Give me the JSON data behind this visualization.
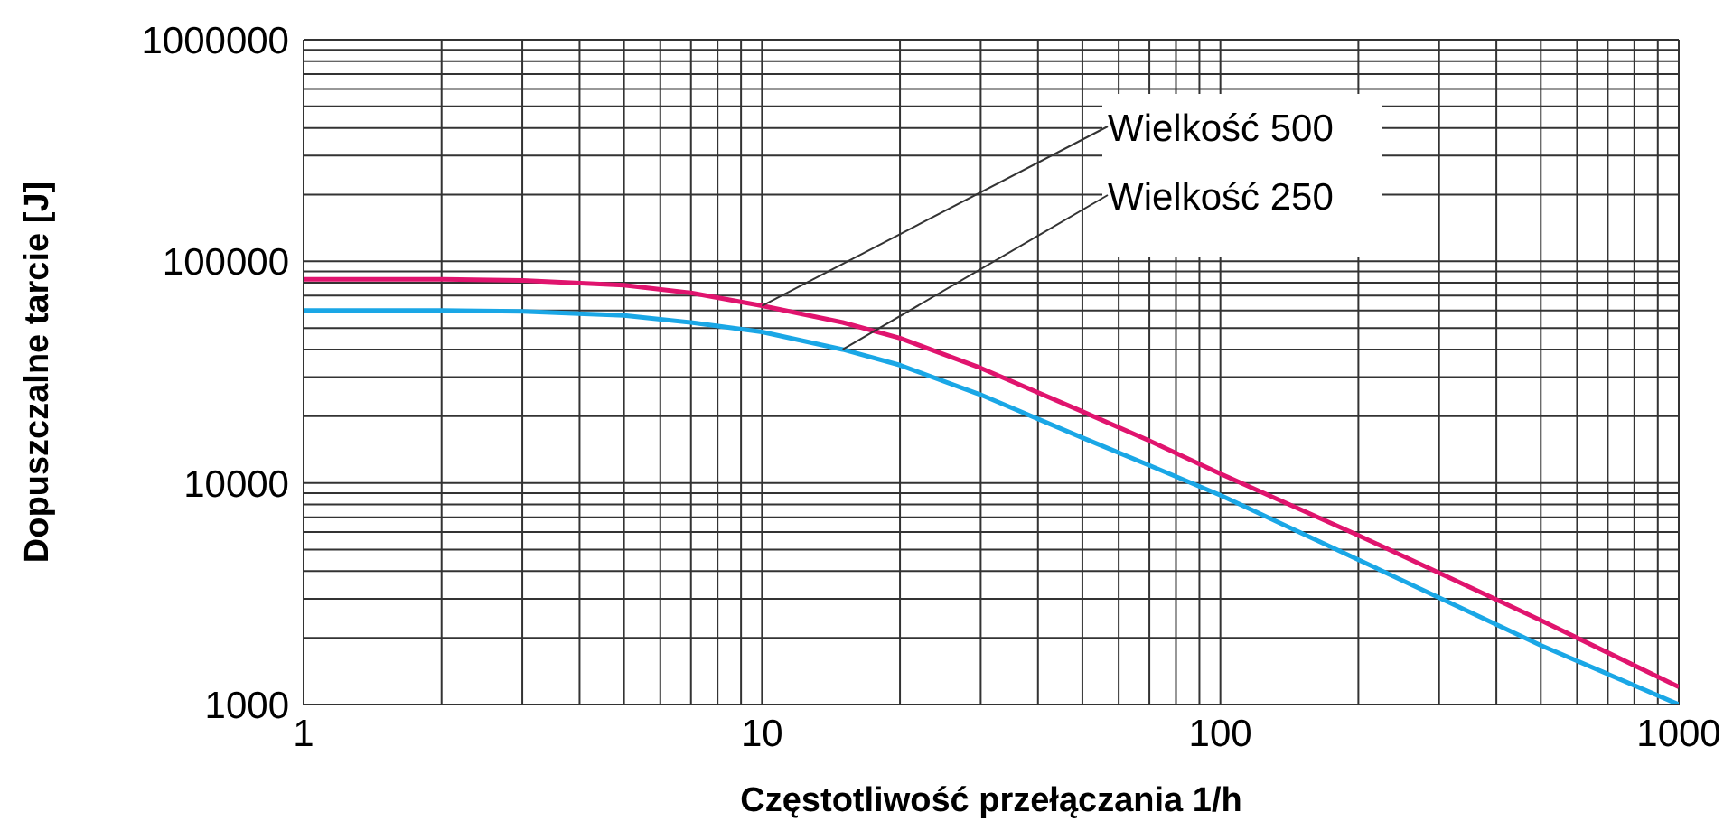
{
  "chart_data": {
    "type": "line",
    "xlabel": "Częstotliwość przełączania 1/h",
    "ylabel": "Dopuszczalne tarcie  [J]",
    "log": "xy",
    "grid": true,
    "legend": false,
    "marker": "none",
    "line_style": "solid",
    "xlim": [
      1,
      1000
    ],
    "ylim": [
      1000,
      1000000
    ],
    "xticks": [
      1,
      {
        "value": 2,
        "label": null
      },
      {
        "value": 3,
        "label": null
      },
      {
        "value": 4,
        "label": null
      },
      {
        "value": 5,
        "label": null
      },
      {
        "value": 6,
        "label": null
      },
      {
        "value": 7,
        "label": null
      },
      {
        "value": 8,
        "label": null
      },
      {
        "value": 9,
        "label": null
      },
      10,
      {
        "value": 20,
        "label": null
      },
      {
        "value": 30,
        "label": null
      },
      {
        "value": 40,
        "label": null
      },
      {
        "value": 50,
        "label": null
      },
      {
        "value": 60,
        "label": null
      },
      {
        "value": 70,
        "label": null
      },
      {
        "value": 80,
        "label": null
      },
      {
        "value": 90,
        "label": null
      },
      100,
      {
        "value": 200,
        "label": null
      },
      {
        "value": 300,
        "label": null
      },
      {
        "value": 400,
        "label": null
      },
      {
        "value": 500,
        "label": null
      },
      {
        "value": 600,
        "label": null
      },
      {
        "value": 700,
        "label": null
      },
      {
        "value": 800,
        "label": null
      },
      {
        "value": 900,
        "label": null
      },
      1000
    ],
    "yticks": [
      1000,
      {
        "value": 2000,
        "label": null
      },
      {
        "value": 3000,
        "label": null
      },
      {
        "value": 4000,
        "label": null
      },
      {
        "value": 5000,
        "label": null
      },
      {
        "value": 6000,
        "label": null
      },
      {
        "value": 7000,
        "label": null
      },
      {
        "value": 8000,
        "label": null
      },
      {
        "value": 9000,
        "label": null
      },
      10000,
      {
        "value": 20000,
        "label": null
      },
      {
        "value": 30000,
        "label": null
      },
      {
        "value": 40000,
        "label": null
      },
      {
        "value": 50000,
        "label": null
      },
      {
        "value": 60000,
        "label": null
      },
      {
        "value": 70000,
        "label": null
      },
      {
        "value": 80000,
        "label": null
      },
      {
        "value": 90000,
        "label": null
      },
      100000,
      {
        "value": 200000,
        "label": null
      },
      {
        "value": 300000,
        "label": null
      },
      {
        "value": 400000,
        "label": null
      },
      {
        "value": 500000,
        "label": null
      },
      {
        "value": 600000,
        "label": null
      },
      {
        "value": 700000,
        "label": null
      },
      {
        "value": 800000,
        "label": null
      },
      {
        "value": 900000,
        "label": null
      },
      1000000
    ],
    "x": [
      1,
      2,
      3,
      5,
      7,
      10,
      15,
      20,
      30,
      50,
      70,
      100,
      200,
      500,
      1000
    ],
    "series": [
      {
        "name": "Wielkość 500",
        "color": "#e0146e",
        "values": [
          83000,
          83000,
          82000,
          78000,
          72000,
          63000,
          53000,
          45000,
          33000,
          21000,
          15500,
          11000,
          5800,
          2400,
          1200
        ]
      },
      {
        "name": "Wielkość 250",
        "color": "#1aa7e6",
        "values": [
          60000,
          60000,
          59500,
          57000,
          53000,
          48000,
          40000,
          34000,
          25000,
          16000,
          12000,
          8800,
          4500,
          1850,
          1000
        ]
      }
    ]
  }
}
